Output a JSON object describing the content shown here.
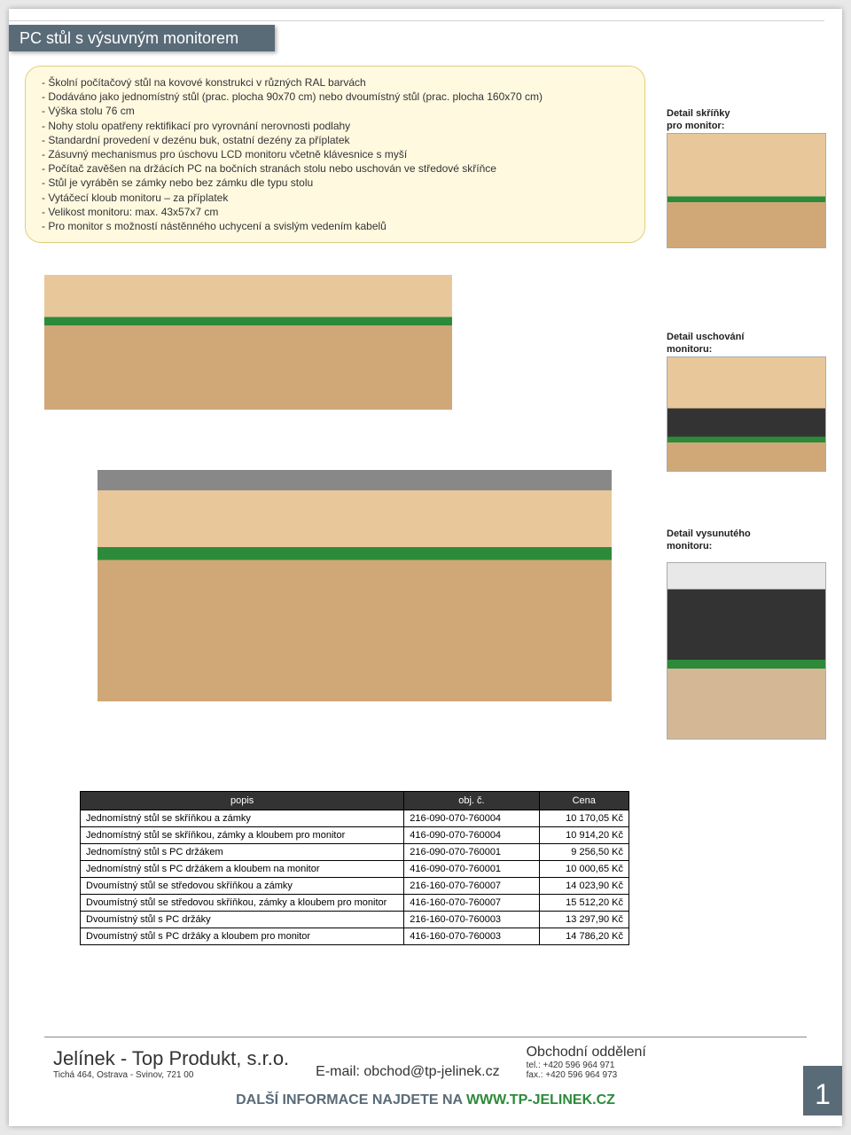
{
  "title": "PC stůl s výsuvným monitorem",
  "bullets": [
    "- Školní počítačový stůl na kovové konstrukci v různých RAL barvách",
    "- Dodáváno jako jednomístný stůl (prac. plocha 90x70 cm) nebo dvoumístný stůl (prac. plocha 160x70 cm)",
    "- Výška stolu 76 cm",
    "- Nohy stolu opatřeny rektifikací pro vyrovnání nerovnosti podlahy",
    "- Standardní provedení v dezénu buk, ostatní dezény za příplatek",
    "- Zásuvný mechanismus pro úschovu LCD monitoru včetně klávesnice s myší",
    "- Počítač zavěšen na držácích PC na bočních stranách stolu nebo uschován ve středové skříňce",
    "- Stůl je vyráběn se zámky nebo bez zámku dle typu stolu",
    "- Vytáčecí kloub monitoru – za příplatek",
    "- Velikost monitoru: max. 43x57x7 cm",
    "- Pro monitor s možností nástěnného uchycení a svislým vedením kabelů"
  ],
  "detail_labels": {
    "skrinka": "Detail skříňky\npro monitor:",
    "uschovani": "Detail uschování\nmonitoru:",
    "vysunuty": "Detail vysunutého\nmonitoru:"
  },
  "table": {
    "headers": [
      "popis",
      "obj. č.",
      "Cena"
    ],
    "rows": [
      [
        "Jednomístný stůl se skříňkou a zámky",
        "216-090-070-760004",
        "10 170,05 Kč"
      ],
      [
        "Jednomístný stůl se skříňkou, zámky a kloubem pro monitor",
        "416-090-070-760004",
        "10 914,20 Kč"
      ],
      [
        "Jednomístný stůl s PC držákem",
        "216-090-070-760001",
        "9 256,50 Kč"
      ],
      [
        "Jednomístný stůl s PC držákem a kloubem na monitor",
        "416-090-070-760001",
        "10 000,65 Kč"
      ],
      [
        "Dvoumístný stůl se středovou skříňkou a zámky",
        "216-160-070-760007",
        "14 023,90 Kč"
      ],
      [
        "Dvoumístný stůl se středovou skříňkou, zámky a kloubem pro monitor",
        "416-160-070-760007",
        "15 512,20 Kč"
      ],
      [
        "Dvoumístný stůl s PC držáky",
        "216-160-070-760003",
        "13 297,90 Kč"
      ],
      [
        "Dvoumístný stůl s PC držáky a kloubem pro monitor",
        "416-160-070-760003",
        "14 786,20 Kč"
      ]
    ]
  },
  "footer": {
    "company": "Jelínek - Top Produkt, s.r.o.",
    "address": "Tichá 464, Ostrava - Svinov, 721 00",
    "email_label": "E-mail: obchod@tp-jelinek.cz",
    "dept": "Obchodní oddělení",
    "tel": "tel.: +420 596 964 971",
    "fax": "fax.: +420 596 964 973",
    "more_info_prefix": "DALŠÍ INFORMACE NAJDETE NA ",
    "url": "WWW.TP-JELINEK.CZ",
    "page_num": "1"
  }
}
